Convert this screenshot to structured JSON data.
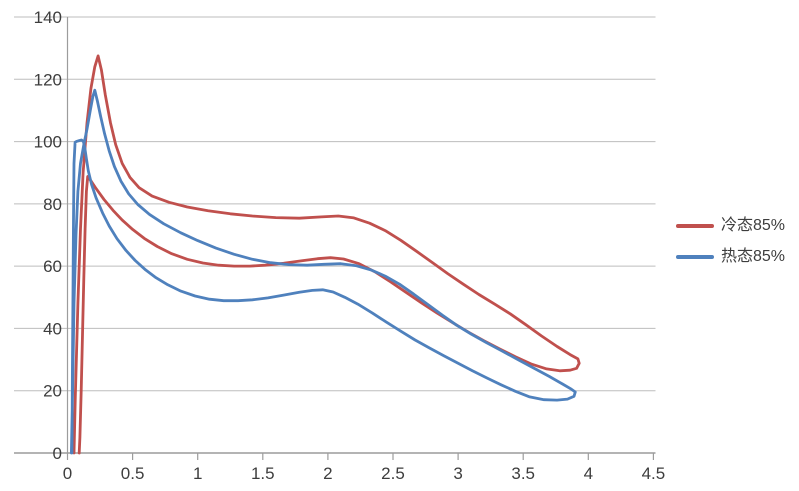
{
  "chart_data": {
    "type": "line",
    "title": "",
    "xlabel": "",
    "ylabel": "",
    "xlim": [
      0,
      4.5
    ],
    "ylim": [
      0,
      140
    ],
    "grid": true,
    "legend_position": "right-middle",
    "x_tick_labels": [
      "0",
      "0.5",
      "1",
      "1.5",
      "2",
      "2.5",
      "3",
      "3.5",
      "4",
      "4.5"
    ],
    "x_tick_values": [
      0,
      0.5,
      1,
      1.5,
      2,
      2.5,
      3,
      3.5,
      4,
      4.5
    ],
    "y_tick_labels": [
      "0",
      "20",
      "40",
      "60",
      "80",
      "100",
      "120",
      "140"
    ],
    "y_tick_values": [
      0,
      20,
      40,
      60,
      80,
      100,
      120,
      140
    ],
    "series": [
      {
        "name": "冷态85%",
        "color": "#C0504D",
        "shape": "hysteresis-loop",
        "peak": [
          0.235,
          127.5
        ],
        "points": [
          [
            0.05,
            0
          ],
          [
            0.06,
            18
          ],
          [
            0.08,
            48
          ],
          [
            0.1,
            72
          ],
          [
            0.12,
            90
          ],
          [
            0.15,
            106
          ],
          [
            0.18,
            117
          ],
          [
            0.21,
            124
          ],
          [
            0.235,
            127.5
          ],
          [
            0.26,
            123
          ],
          [
            0.29,
            115
          ],
          [
            0.33,
            106
          ],
          [
            0.37,
            99
          ],
          [
            0.42,
            93
          ],
          [
            0.48,
            88.5
          ],
          [
            0.55,
            85.2
          ],
          [
            0.65,
            82.5
          ],
          [
            0.78,
            80.5
          ],
          [
            0.92,
            79
          ],
          [
            1.08,
            77.8
          ],
          [
            1.25,
            76.8
          ],
          [
            1.42,
            76.1
          ],
          [
            1.6,
            75.6
          ],
          [
            1.78,
            75.4
          ],
          [
            1.95,
            75.8
          ],
          [
            2.08,
            76.1
          ],
          [
            2.2,
            75.5
          ],
          [
            2.32,
            73.8
          ],
          [
            2.44,
            71.4
          ],
          [
            2.56,
            68.3
          ],
          [
            2.68,
            64.8
          ],
          [
            2.8,
            61.2
          ],
          [
            2.92,
            57.6
          ],
          [
            3.04,
            54.2
          ],
          [
            3.16,
            50.9
          ],
          [
            3.28,
            47.8
          ],
          [
            3.4,
            44.7
          ],
          [
            3.52,
            41.2
          ],
          [
            3.64,
            37.6
          ],
          [
            3.76,
            34.2
          ],
          [
            3.86,
            31.6
          ],
          [
            3.92,
            30.2
          ],
          [
            3.93,
            28.8
          ],
          [
            3.91,
            27.2
          ],
          [
            3.86,
            26.6
          ],
          [
            3.78,
            26.4
          ],
          [
            3.68,
            27
          ],
          [
            3.56,
            28.6
          ],
          [
            3.44,
            30.9
          ],
          [
            3.32,
            33.4
          ],
          [
            3.2,
            36
          ],
          [
            3.08,
            38.8
          ],
          [
            2.96,
            41.8
          ],
          [
            2.84,
            44.9
          ],
          [
            2.72,
            48.2
          ],
          [
            2.6,
            51.6
          ],
          [
            2.48,
            55
          ],
          [
            2.36,
            58.2
          ],
          [
            2.24,
            60.8
          ],
          [
            2.12,
            62.3
          ],
          [
            2.02,
            62.7
          ],
          [
            1.92,
            62.4
          ],
          [
            1.8,
            61.7
          ],
          [
            1.66,
            60.9
          ],
          [
            1.52,
            60.3
          ],
          [
            1.4,
            60
          ],
          [
            1.28,
            60
          ],
          [
            1.16,
            60.3
          ],
          [
            1.04,
            61
          ],
          [
            0.92,
            62.2
          ],
          [
            0.8,
            64
          ],
          [
            0.69,
            66.3
          ],
          [
            0.59,
            68.9
          ],
          [
            0.5,
            71.8
          ],
          [
            0.42,
            74.8
          ],
          [
            0.35,
            77.9
          ],
          [
            0.28,
            81.4
          ],
          [
            0.22,
            84.9
          ],
          [
            0.18,
            87.4
          ],
          [
            0.155,
            88.8
          ],
          [
            0.145,
            84
          ],
          [
            0.135,
            72
          ],
          [
            0.125,
            56
          ],
          [
            0.115,
            38
          ],
          [
            0.105,
            20
          ],
          [
            0.095,
            5
          ],
          [
            0.09,
            0
          ]
        ]
      },
      {
        "name": "热态85%",
        "color": "#4F81BD",
        "shape": "hysteresis-loop",
        "peak": [
          0.21,
          116.5
        ],
        "points": [
          [
            0.03,
            0
          ],
          [
            0.04,
            22
          ],
          [
            0.05,
            48
          ],
          [
            0.065,
            70
          ],
          [
            0.08,
            84
          ],
          [
            0.1,
            93
          ],
          [
            0.125,
            99
          ],
          [
            0.15,
            104
          ],
          [
            0.175,
            110
          ],
          [
            0.195,
            114.5
          ],
          [
            0.21,
            116.5
          ],
          [
            0.23,
            113
          ],
          [
            0.255,
            108
          ],
          [
            0.285,
            102.5
          ],
          [
            0.32,
            97
          ],
          [
            0.36,
            92
          ],
          [
            0.41,
            87.3
          ],
          [
            0.47,
            83.2
          ],
          [
            0.54,
            79.8
          ],
          [
            0.63,
            76.6
          ],
          [
            0.74,
            73.6
          ],
          [
            0.87,
            70.7
          ],
          [
            1.0,
            68.2
          ],
          [
            1.14,
            65.8
          ],
          [
            1.28,
            63.8
          ],
          [
            1.42,
            62.2
          ],
          [
            1.56,
            61.1
          ],
          [
            1.7,
            60.5
          ],
          [
            1.84,
            60.3
          ],
          [
            1.97,
            60.6
          ],
          [
            2.1,
            60.8
          ],
          [
            2.22,
            60.1
          ],
          [
            2.33,
            58.8
          ],
          [
            2.44,
            56.8
          ],
          [
            2.55,
            54.2
          ],
          [
            2.66,
            51
          ],
          [
            2.77,
            47.6
          ],
          [
            2.88,
            44.2
          ],
          [
            2.99,
            41
          ],
          [
            3.1,
            38.2
          ],
          [
            3.22,
            35.4
          ],
          [
            3.34,
            32.7
          ],
          [
            3.46,
            30
          ],
          [
            3.58,
            27.3
          ],
          [
            3.7,
            24.6
          ],
          [
            3.8,
            22.2
          ],
          [
            3.87,
            20.5
          ],
          [
            3.9,
            19.6
          ],
          [
            3.89,
            18.2
          ],
          [
            3.84,
            17.3
          ],
          [
            3.76,
            17
          ],
          [
            3.66,
            17.1
          ],
          [
            3.55,
            18
          ],
          [
            3.44,
            19.8
          ],
          [
            3.33,
            21.9
          ],
          [
            3.22,
            24.1
          ],
          [
            3.11,
            26.4
          ],
          [
            3.0,
            28.8
          ],
          [
            2.89,
            31.2
          ],
          [
            2.78,
            33.7
          ],
          [
            2.67,
            36.3
          ],
          [
            2.56,
            39.1
          ],
          [
            2.45,
            42
          ],
          [
            2.34,
            45
          ],
          [
            2.23,
            47.8
          ],
          [
            2.13,
            50
          ],
          [
            2.04,
            51.7
          ],
          [
            1.96,
            52.4
          ],
          [
            1.88,
            52.2
          ],
          [
            1.78,
            51.6
          ],
          [
            1.66,
            50.7
          ],
          [
            1.54,
            49.8
          ],
          [
            1.42,
            49.2
          ],
          [
            1.31,
            48.9
          ],
          [
            1.2,
            48.9
          ],
          [
            1.09,
            49.4
          ],
          [
            0.98,
            50.4
          ],
          [
            0.87,
            52
          ],
          [
            0.77,
            54
          ],
          [
            0.68,
            56.3
          ],
          [
            0.6,
            58.8
          ],
          [
            0.52,
            61.8
          ],
          [
            0.45,
            65
          ],
          [
            0.38,
            68.8
          ],
          [
            0.32,
            72.9
          ],
          [
            0.27,
            77
          ],
          [
            0.22,
            81.9
          ],
          [
            0.185,
            86.2
          ],
          [
            0.16,
            90.6
          ],
          [
            0.145,
            94.5
          ],
          [
            0.133,
            98
          ],
          [
            0.122,
            100
          ],
          [
            0.108,
            100.5
          ],
          [
            0.09,
            100.3
          ],
          [
            0.072,
            100.1
          ],
          [
            0.058,
            99.8
          ],
          [
            0.05,
            93
          ],
          [
            0.046,
            75
          ],
          [
            0.042,
            52
          ],
          [
            0.038,
            26
          ],
          [
            0.035,
            6
          ],
          [
            0.034,
            0
          ]
        ]
      }
    ]
  },
  "colors": {
    "background": "#FFFFFF",
    "gridline": "#BDBDBD",
    "axis": "#9C9C9C",
    "tick_text": "#3D3D3D"
  }
}
